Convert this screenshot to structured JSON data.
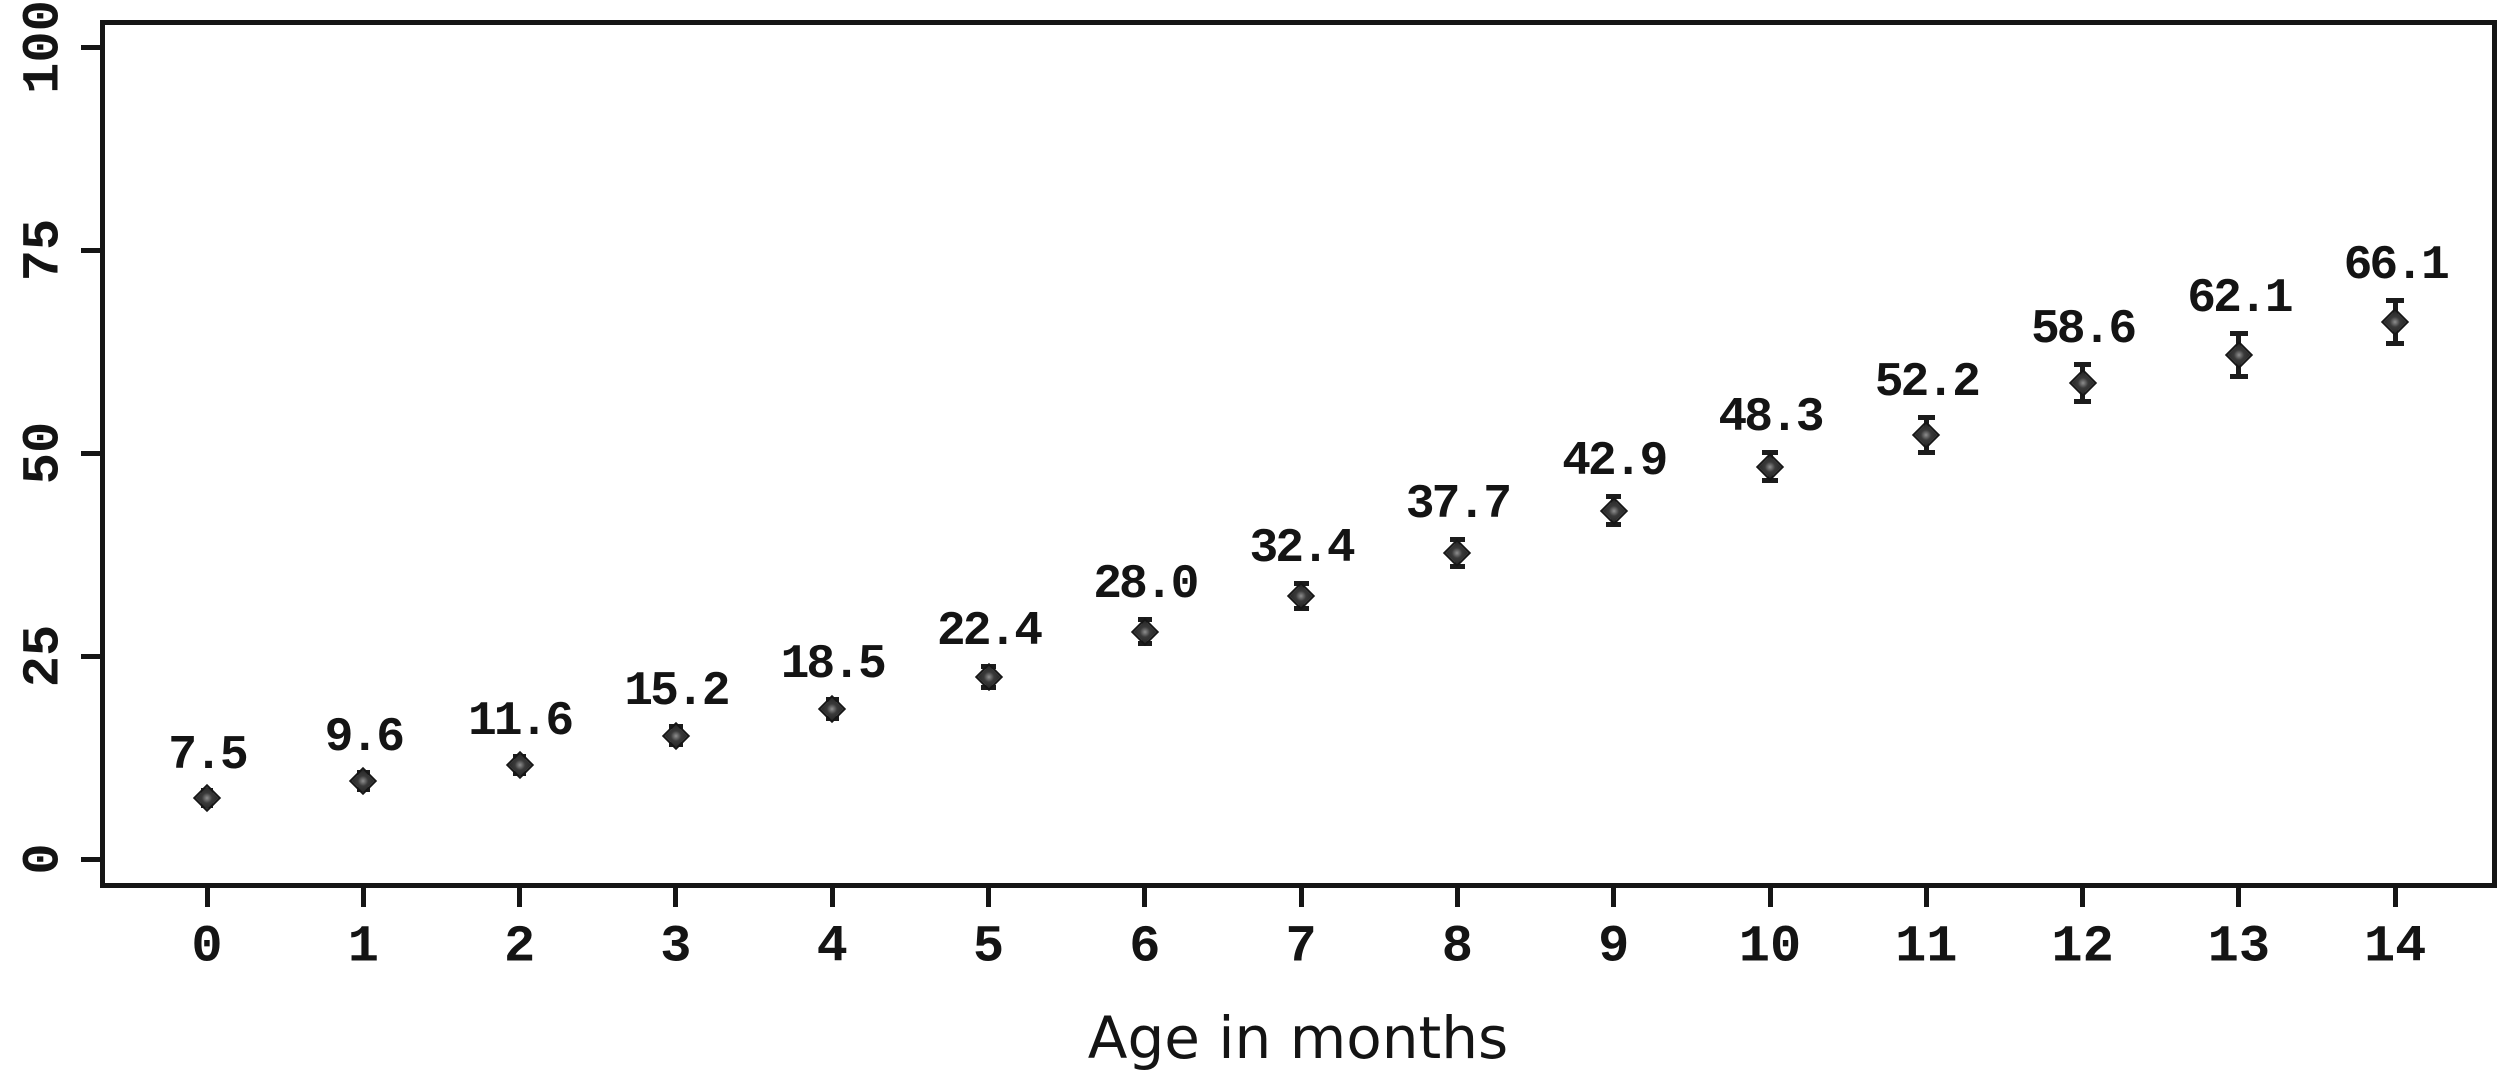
{
  "figure": {
    "background_color": "#ffffff",
    "axis_color": "#151515",
    "text_color": "#141414",
    "marker_color": "#2e2e2e",
    "marker_shape": "diamond"
  },
  "chart_data": {
    "type": "scatter",
    "title": "",
    "xlabel": "Age in months",
    "ylabel": "",
    "x": [
      0,
      1,
      2,
      3,
      4,
      5,
      6,
      7,
      8,
      9,
      10,
      11,
      12,
      13,
      14
    ],
    "y": [
      7.5,
      9.6,
      11.6,
      15.2,
      18.5,
      22.4,
      28.0,
      32.4,
      37.7,
      42.9,
      48.3,
      52.2,
      58.6,
      62.1,
      66.1
    ],
    "point_labels": [
      "7.5",
      "9.6",
      "11.6",
      "15.2",
      "18.5",
      "22.4",
      "28.0",
      "32.4",
      "37.7",
      "42.9",
      "48.3",
      "52.2",
      "58.6",
      "62.1",
      "66.1"
    ],
    "ci_half": [
      1.0,
      1.1,
      1.1,
      1.2,
      1.2,
      1.4,
      1.5,
      1.6,
      1.7,
      1.8,
      1.8,
      2.2,
      2.3,
      2.7,
      2.7
    ],
    "error_bars": true,
    "xticks": [
      "0",
      "1",
      "2",
      "3",
      "4",
      "5",
      "6",
      "7",
      "8",
      "9",
      "10",
      "11",
      "12",
      "13",
      "14"
    ],
    "yticks": [
      "0",
      "25",
      "50",
      "75",
      "100"
    ],
    "ytick_values": [
      0,
      25,
      50,
      75,
      100
    ],
    "ylim": [
      0,
      100
    ],
    "xlim": [
      -0.7,
      14.7
    ],
    "grid": false,
    "legend_position": "none",
    "plot_border": "full-box"
  }
}
